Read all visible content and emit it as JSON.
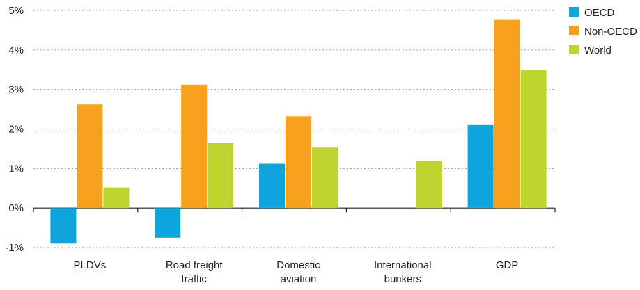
{
  "chart_data": {
    "type": "bar",
    "categories": [
      [
        "PLDVs"
      ],
      [
        "Road freight",
        "traffic"
      ],
      [
        "Domestic",
        "aviation"
      ],
      [
        "International",
        "bunkers"
      ],
      [
        "GDP"
      ]
    ],
    "series": [
      {
        "name": "OECD",
        "color": "#0ea5dc",
        "values": [
          -0.9,
          -0.75,
          1.12,
          null,
          2.1
        ]
      },
      {
        "name": "Non-OECD",
        "color": "#f7a11f",
        "values": [
          2.62,
          3.12,
          2.32,
          null,
          4.76
        ]
      },
      {
        "name": "World",
        "color": "#bdd52e",
        "values": [
          0.52,
          1.65,
          1.53,
          1.2,
          3.5
        ]
      }
    ],
    "y_ticks": [
      {
        "value": 5,
        "label": "5%"
      },
      {
        "value": 4,
        "label": "4%"
      },
      {
        "value": 3,
        "label": "3%"
      },
      {
        "value": 2,
        "label": "2%"
      },
      {
        "value": 1,
        "label": "1%"
      },
      {
        "value": 0,
        "label": "0%"
      },
      {
        "value": -1,
        "label": "-1%"
      }
    ],
    "ylim": [
      -1,
      5
    ],
    "grid": true,
    "legend_position": "top-right"
  }
}
